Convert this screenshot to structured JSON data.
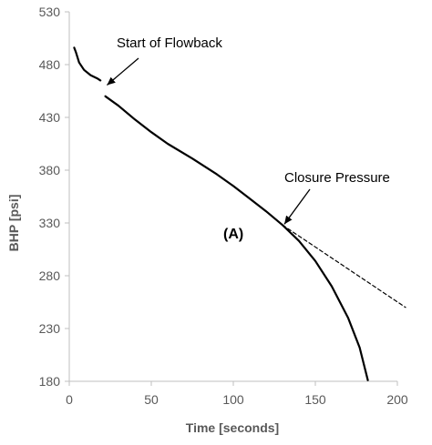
{
  "chart_data": {
    "type": "line",
    "title": "",
    "xlabel": "Time [seconds]",
    "ylabel": "BHP [psi]",
    "xlim": [
      0,
      200
    ],
    "ylim": [
      180,
      530
    ],
    "x_ticks": [
      "0",
      "50",
      "100",
      "150",
      "200"
    ],
    "y_ticks": [
      "180",
      "230",
      "280",
      "330",
      "380",
      "430",
      "480",
      "530"
    ],
    "grid": false,
    "legend": "none",
    "colors": {
      "line": "#000000",
      "axis": "#bfbfbf",
      "text": "#595959"
    },
    "series": [
      {
        "style": "solid",
        "points": [
          [
            3,
            496
          ],
          [
            4,
            492
          ],
          [
            6,
            482
          ],
          [
            9,
            475
          ],
          [
            13,
            470
          ],
          [
            17,
            467
          ],
          [
            19,
            465
          ]
        ]
      },
      {
        "style": "solid",
        "points": [
          [
            22,
            450
          ],
          [
            30,
            441
          ],
          [
            40,
            428
          ],
          [
            50,
            416
          ],
          [
            60,
            405
          ],
          [
            75,
            391
          ],
          [
            90,
            376
          ],
          [
            100,
            365
          ],
          [
            110,
            353
          ],
          [
            120,
            341
          ],
          [
            130,
            328
          ],
          [
            140,
            313
          ],
          [
            150,
            294
          ],
          [
            160,
            270
          ],
          [
            170,
            240
          ],
          [
            177,
            212
          ],
          [
            182,
            181
          ]
        ]
      },
      {
        "style": "dashed",
        "points": [
          [
            130,
            328
          ],
          [
            205,
            250
          ]
        ]
      }
    ],
    "annotations": [
      {
        "text": "Start of Flowback",
        "arrow_to": [
          23,
          458
        ]
      },
      {
        "text": "Closure Pressure",
        "arrow_to": [
          130,
          328
        ]
      },
      {
        "text": "(A)"
      }
    ]
  }
}
